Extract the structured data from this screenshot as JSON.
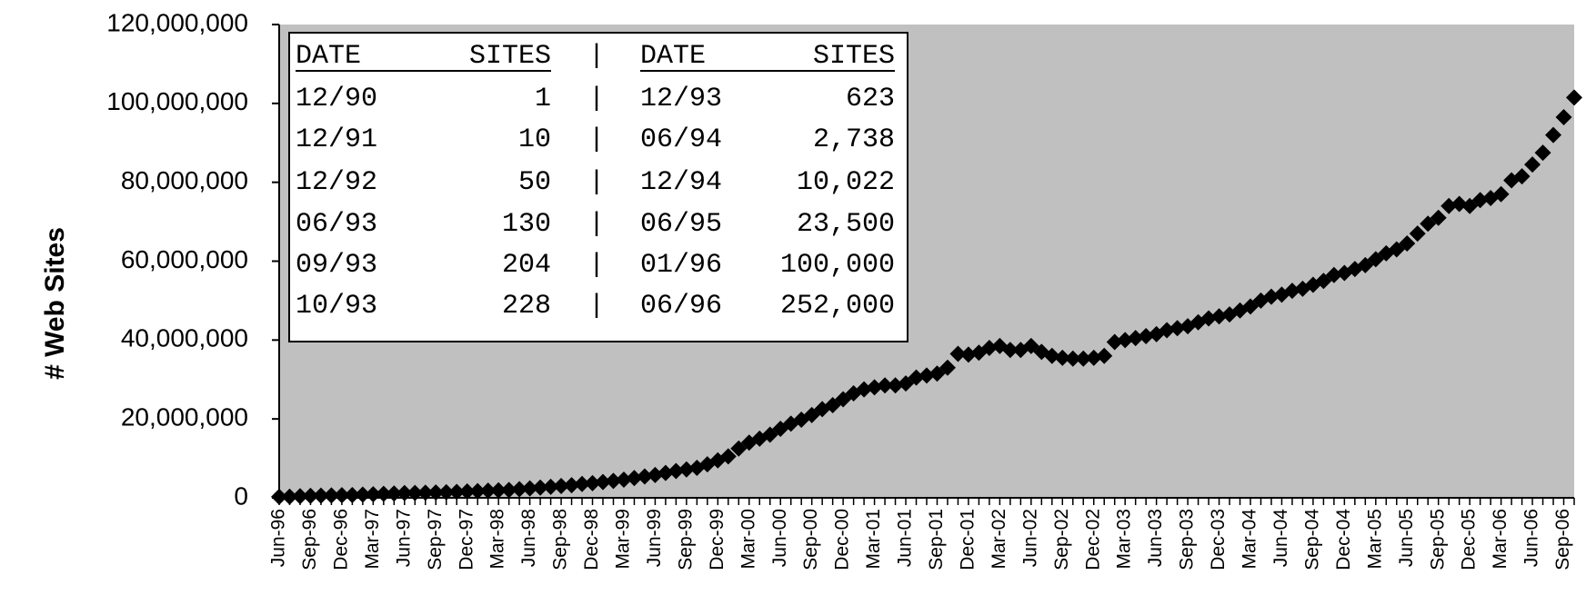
{
  "chart_data": {
    "type": "line",
    "marker": "diamond",
    "color": "#000000",
    "background": "#c0c0c0",
    "y_label": "# Web Sites",
    "categories": [
      "Jun-96",
      null,
      null,
      "Sep-96",
      null,
      null,
      "Dec-96",
      null,
      null,
      "Mar-97",
      null,
      null,
      "Jun-97",
      null,
      null,
      "Sep-97",
      null,
      null,
      "Dec-97",
      null,
      null,
      "Mar-98",
      null,
      null,
      "Jun-98",
      null,
      null,
      "Sep-98",
      null,
      null,
      "Dec-98",
      null,
      null,
      "Mar-99",
      null,
      null,
      "Jun-99",
      null,
      null,
      "Sep-99",
      null,
      null,
      "Dec-99",
      null,
      null,
      "Mar-00",
      null,
      null,
      "Jun-00",
      null,
      null,
      "Sep-00",
      null,
      null,
      "Dec-00",
      null,
      null,
      "Mar-01",
      null,
      null,
      "Jun-01",
      null,
      null,
      "Sep-01",
      null,
      null,
      "Dec-01",
      null,
      null,
      "Mar-02",
      null,
      null,
      "Jun-02",
      null,
      null,
      "Sep-02",
      null,
      null,
      "Dec-02",
      null,
      null,
      "Mar-03",
      null,
      null,
      "Jun-03",
      null,
      null,
      "Sep-03",
      null,
      null,
      "Dec-03",
      null,
      null,
      "Mar-04",
      null,
      null,
      "Jun-04",
      null,
      null,
      "Sep-04",
      null,
      null,
      "Dec-04",
      null,
      null,
      "Mar-05",
      null,
      null,
      "Jun-05",
      null,
      null,
      "Sep-05",
      null,
      null,
      "Dec-05",
      null,
      null,
      "Mar-06",
      null,
      null,
      "Jun-06",
      null,
      null,
      "Sep-06",
      null
    ],
    "values": [
      250000,
      300000,
      400000,
      500000,
      550000,
      600000,
      650000,
      700000,
      800000,
      900000,
      1000000,
      1100000,
      1200000,
      1250000,
      1300000,
      1350000,
      1400000,
      1500000,
      1600000,
      1700000,
      1800000,
      1900000,
      2000000,
      2200000,
      2400000,
      2600000,
      2800000,
      3000000,
      3200000,
      3500000,
      3700000,
      4000000,
      4300000,
      4600000,
      5000000,
      5400000,
      5800000,
      6300000,
      6800000,
      7200000,
      7600000,
      8500000,
      9500000,
      10500000,
      12500000,
      14000000,
      15000000,
      16000000,
      17500000,
      18800000,
      19800000,
      21000000,
      22500000,
      23500000,
      25000000,
      26500000,
      27500000,
      28000000,
      28500000,
      28500000,
      29000000,
      30500000,
      31000000,
      31500000,
      33000000,
      36500000,
      36300000,
      36800000,
      38000000,
      38500000,
      37500000,
      37500000,
      38500000,
      37000000,
      36000000,
      35500000,
      35300000,
      35300000,
      35500000,
      36000000,
      39500000,
      40000000,
      40500000,
      41000000,
      41500000,
      42500000,
      43000000,
      43500000,
      44500000,
      45500000,
      46000000,
      46500000,
      47500000,
      48500000,
      50000000,
      51000000,
      51500000,
      52500000,
      53000000,
      54000000,
      55000000,
      56500000,
      57000000,
      58000000,
      59000000,
      60500000,
      62000000,
      63000000,
      64500000,
      67000000,
      69500000,
      71000000,
      74000000,
      74500000,
      74000000,
      75500000,
      76000000,
      77000000,
      80500000,
      81500000,
      84500000,
      87500000,
      92000000,
      96500000,
      101500000
    ],
    "ylim": [
      0,
      120000000
    ],
    "yticks": [
      0,
      {
        "value": 20000000,
        "label": "20,000,000"
      },
      {
        "value": 40000000,
        "label": "40,000,000"
      },
      {
        "value": 60000000,
        "label": "60,000,000"
      },
      {
        "value": 80000000,
        "label": "80,000,000"
      },
      {
        "value": 100000000,
        "label": "100,000,000"
      },
      {
        "value": 120000000,
        "label": "120,000,000"
      }
    ],
    "grid": false,
    "table": {
      "header": [
        "DATE",
        "SITES",
        "|",
        "DATE",
        "SITES"
      ],
      "rows": [
        [
          "12/90",
          "1",
          "|",
          "12/93",
          "623"
        ],
        [
          "12/91",
          "10",
          "|",
          "06/94",
          "2,738"
        ],
        [
          "12/92",
          "50",
          "|",
          "12/94",
          "10,022"
        ],
        [
          "06/93",
          "130",
          "|",
          "06/95",
          "23,500"
        ],
        [
          "09/93",
          "204",
          "|",
          "01/96",
          "100,000"
        ],
        [
          "10/93",
          "228",
          "|",
          "06/96",
          "252,000"
        ]
      ]
    }
  }
}
